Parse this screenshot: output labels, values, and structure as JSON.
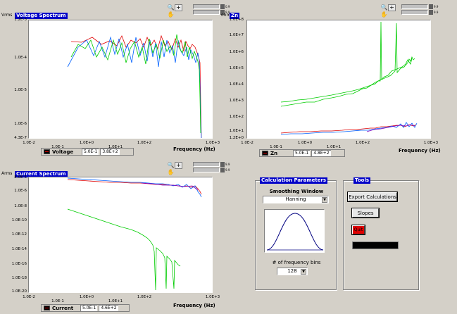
{
  "graphs": {
    "voltage": {
      "title": "Voltage Spectrum",
      "unit": "Vrms",
      "y_ticks": [
        "1.2E-3",
        "1.0E-4",
        "1.0E-5",
        "1.0E-6",
        "4.3E-7"
      ],
      "x_ticks": [
        "1.0E-2",
        "1.0E-1",
        "1.0E+0",
        "1.0E+1",
        "1.0E+2",
        "1.0E+3"
      ],
      "x_ticks_partial": [
        "1.0E-1",
        "1.0E+1",
        "1.0E+3"
      ],
      "x_label": "Frequency (Hz)",
      "legend_name": "Voltage",
      "legend_v1": "5.0E-1",
      "legend_v2": "3.8E+2"
    },
    "zn": {
      "title": "Zn",
      "unit": "ohm",
      "y_ticks": [
        "1.0E+8",
        "1.0E+7",
        "1.0E+6",
        "1.0E+5",
        "1.0E+4",
        "1.0E+3",
        "1.0E+2",
        "1.0E+1",
        "1.2E+0"
      ],
      "x_ticks": [
        "1.0E-2",
        "1.0E+0",
        "1.0E+2"
      ],
      "x_ticks_partial": [
        "1.0E-1",
        "1.0E+1",
        "1.0E+3"
      ],
      "x_label": "Frequency (Hz)",
      "legend_name": "Zn",
      "legend_v1": "5.0E-1",
      "legend_v2": "4.8E+2"
    },
    "current": {
      "title": "Current Spectrum",
      "unit": "Arms",
      "y_ticks": [
        "8.0E-5",
        "1.0E-6",
        "1.0E-8",
        "1.0E-10",
        "1.0E-12",
        "1.0E-14",
        "1.0E-16",
        "1.0E-18",
        "1.0E-20"
      ],
      "x_ticks": [
        "1.0E-2",
        "1.0E+0",
        "1.0E+2"
      ],
      "x_ticks_partial": [
        "1.0E-1",
        "1.0E+1",
        "1.0E+3"
      ],
      "x_label": "Frequency (Hz)",
      "legend_name": "Current",
      "legend_v1": "5.0E-1",
      "legend_v2": "4.6E+2"
    }
  },
  "scale_labels": {
    "voltage": [
      "0.9",
      "9.9"
    ],
    "zn": [
      "9.9",
      "9.9"
    ],
    "current": [
      "9.9",
      "9.9"
    ]
  },
  "calc": {
    "title": "Calculation Parameters",
    "smoothing_label": "Smoothing Window",
    "smoothing_value": "Hanning",
    "bins_label": "# of frequency bins",
    "bins_value": "128"
  },
  "tools": {
    "title": "Tools",
    "export_label": "Export Calculations",
    "slopes_label": "Slopes",
    "quit_label": "Quit"
  },
  "colors": {
    "series_red": "#e00000",
    "series_green": "#00cc00",
    "series_blue": "#0060ff",
    "title_bg": "#0000c8",
    "quit_red": "#e00000"
  }
}
